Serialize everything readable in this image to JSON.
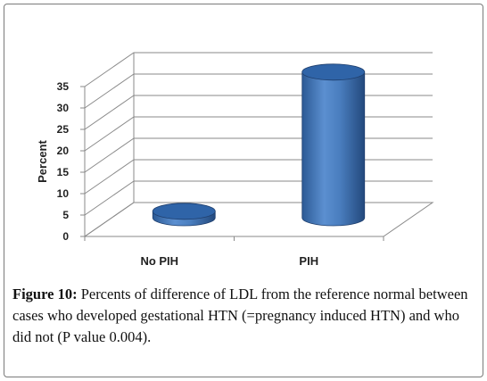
{
  "chart_data": {
    "type": "bar",
    "categories": [
      "No PIH",
      "PIH"
    ],
    "values": [
      1.5,
      34
    ],
    "ylabel": "Percent",
    "xlabel": "",
    "ylim": [
      0,
      35
    ],
    "yticks": [
      0,
      5,
      10,
      15,
      20,
      25,
      30,
      35
    ],
    "grid": true,
    "style": "3d-cylinder",
    "bar_color": "#4a7ebf"
  },
  "caption": {
    "label": "Figure 10:",
    "text": "Percents of difference of LDL from the reference normal between cases who developed gestational HTN (=pregnancy induced HTN) and who did not (P value 0.004)."
  }
}
